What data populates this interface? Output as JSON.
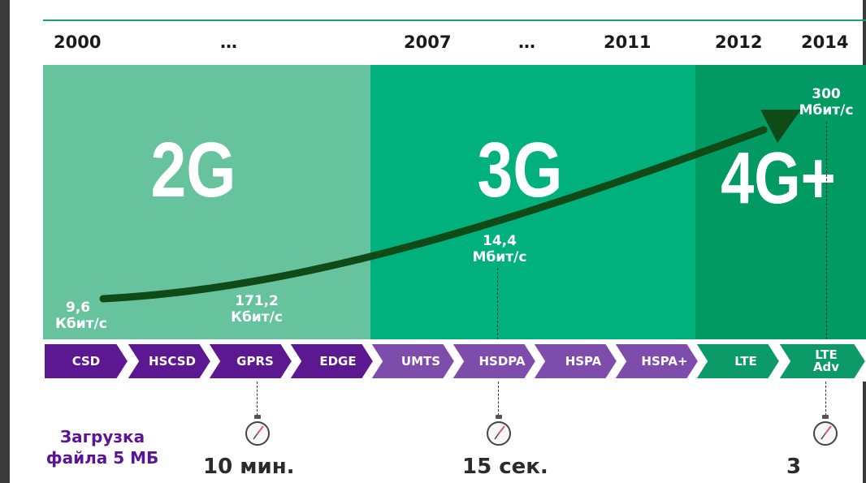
{
  "timeline": [
    "2000",
    "…",
    "2007",
    "…",
    "2011",
    "2012",
    "2014"
  ],
  "generations": {
    "g2": {
      "label": "2G",
      "color": "#66c39e"
    },
    "g3": {
      "label": "3G",
      "color": "#00b07d"
    },
    "g4": {
      "label": "4G+",
      "color": "#009a62"
    }
  },
  "speeds": {
    "csd": {
      "value": "9,6",
      "unit": "Кбит/с"
    },
    "gprs": {
      "value": "171,2",
      "unit": "Кбит/с"
    },
    "hsdpa": {
      "value": "14,4",
      "unit": "Мбит/с"
    },
    "lte_adv": {
      "value": "300",
      "unit": "Мбит/с"
    }
  },
  "technologies": [
    {
      "label": "CSD",
      "color": "#5c1891"
    },
    {
      "label": "HSCSD",
      "color": "#5c1891"
    },
    {
      "label": "GPRS",
      "color": "#5c1891"
    },
    {
      "label": "EDGE",
      "color": "#5c1891"
    },
    {
      "label": "UMTS",
      "color": "#7e4cab"
    },
    {
      "label": "HSDPA",
      "color": "#7e4cab"
    },
    {
      "label": "HSPA",
      "color": "#7e4cab"
    },
    {
      "label": "HSPA+",
      "color": "#7e4cab"
    },
    {
      "label": "LTE",
      "color": "#0c9a68"
    },
    {
      "label": "LTE Adv",
      "color": "#0c9a68"
    }
  ],
  "download": {
    "label": "Загрузка файла 5 МБ",
    "times": [
      "10 мин.",
      "15 сек.",
      "3"
    ]
  },
  "colors": {
    "arrow": "#0f4a17",
    "accent_purple": "#5a1494",
    "rule": "#13a377"
  },
  "icons": {
    "timer": "stopwatch-icon"
  }
}
